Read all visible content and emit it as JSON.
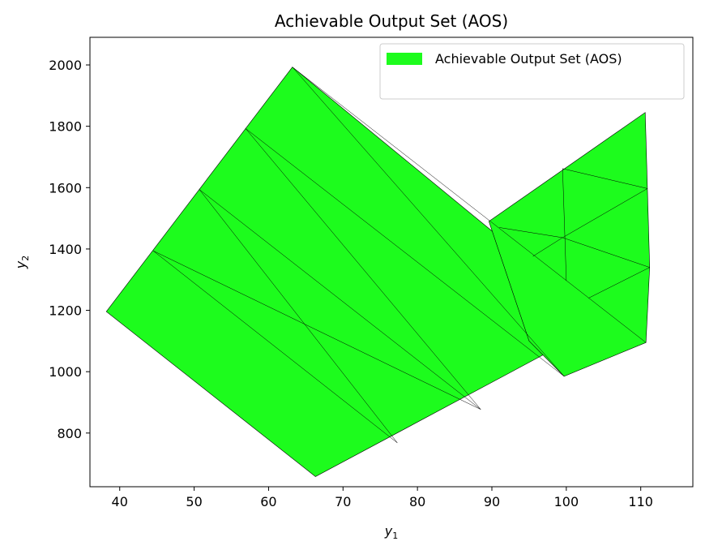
{
  "chart_data": {
    "type": "area",
    "title": "Achievable Output Set (AOS)",
    "xlabel": "y",
    "xlabel_sub": "1",
    "ylabel": "y",
    "ylabel_sub": "2",
    "xlim": [
      36,
      117
    ],
    "ylim": [
      625,
      2090
    ],
    "xticks": [
      40,
      50,
      60,
      70,
      80,
      90,
      100,
      110
    ],
    "yticks": [
      800,
      1000,
      1200,
      1400,
      1600,
      1800,
      2000
    ],
    "grid": false,
    "legend": {
      "position": "top-right",
      "label": "Achievable Output Set (AOS)"
    },
    "fill_color": "#1dfc1d",
    "edge_color": "#000000",
    "polygons": [
      {
        "points": [
          [
            38.2,
            1196
          ],
          [
            63.2,
            1993
          ],
          [
            105.0,
            1160
          ],
          [
            66.3,
            658
          ]
        ]
      },
      {
        "points": [
          [
            89.6,
            1490
          ],
          [
            110.6,
            1845
          ],
          [
            111.2,
            1340
          ],
          [
            110.7,
            1095
          ],
          [
            99.7,
            985
          ],
          [
            95.0,
            1100
          ]
        ]
      }
    ],
    "mesh_lines": [
      [
        [
          44.5,
          1394
        ],
        [
          77.3,
          768
        ]
      ],
      [
        [
          44.5,
          1394
        ],
        [
          88.5,
          877
        ]
      ],
      [
        [
          50.7,
          1594
        ],
        [
          77.3,
          768
        ]
      ],
      [
        [
          50.7,
          1594
        ],
        [
          88.5,
          877
        ]
      ],
      [
        [
          56.9,
          1793
        ],
        [
          88.5,
          877
        ]
      ],
      [
        [
          56.9,
          1793
        ],
        [
          99.7,
          985
        ]
      ],
      [
        [
          63.2,
          1993
        ],
        [
          99.7,
          985
        ]
      ],
      [
        [
          63.2,
          1993
        ],
        [
          110.7,
          1095
        ]
      ],
      [
        [
          99.5,
          1662
        ],
        [
          110.9,
          1597
        ]
      ],
      [
        [
          99.5,
          1662
        ],
        [
          100.0,
          1297
        ]
      ],
      [
        [
          91.0,
          1470
        ],
        [
          99.5,
          1437
        ]
      ],
      [
        [
          99.5,
          1437
        ],
        [
          110.9,
          1597
        ]
      ],
      [
        [
          99.5,
          1437
        ],
        [
          111.2,
          1340
        ]
      ],
      [
        [
          95.5,
          1376
        ],
        [
          99.5,
          1437
        ]
      ],
      [
        [
          103.0,
          1240
        ],
        [
          111.2,
          1340
        ]
      ]
    ]
  }
}
